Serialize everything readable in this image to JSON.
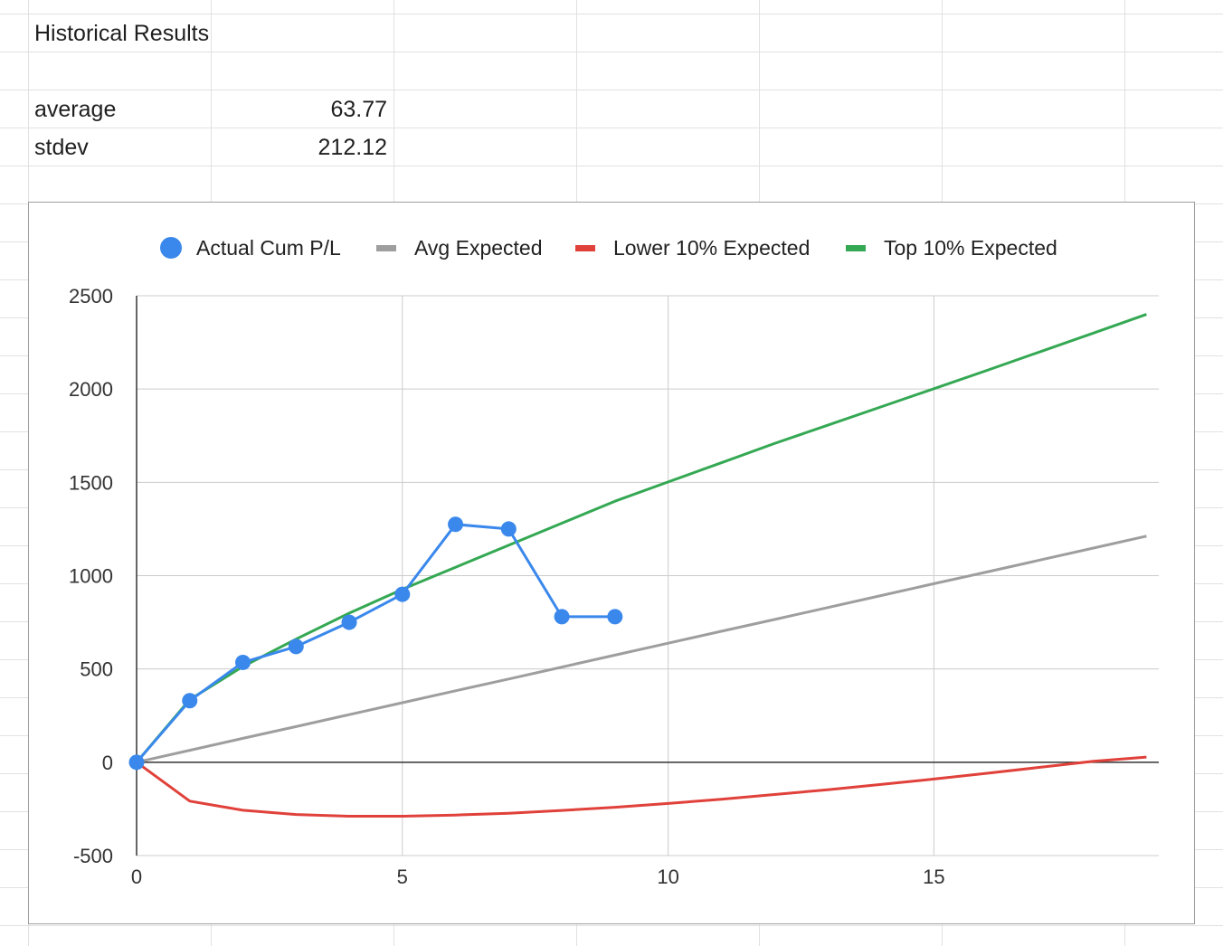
{
  "sheet": {
    "title": "Historical Results",
    "stats": [
      {
        "label": "average",
        "value": "63.77"
      },
      {
        "label": "stdev",
        "value": "212.12"
      }
    ]
  },
  "legend": [
    {
      "label": "Actual Cum P/L",
      "marker": "dot",
      "color": "#3a88ec"
    },
    {
      "label": "Avg Expected",
      "marker": "dash",
      "color": "#9e9e9e"
    },
    {
      "label": "Lower 10% Expected",
      "marker": "dash",
      "color": "#e0413a"
    },
    {
      "label": "Top 10% Expected",
      "marker": "dash",
      "color": "#34a853"
    }
  ],
  "chart_data": {
    "type": "line",
    "xlim": [
      0,
      19
    ],
    "ylim": [
      -500,
      2500
    ],
    "x_ticks": [
      0,
      5,
      10,
      15
    ],
    "y_ticks": [
      -500,
      0,
      500,
      1000,
      1500,
      2000,
      2500
    ],
    "grid": true,
    "legend_position": "top",
    "series": [
      {
        "name": "Actual Cum P/L",
        "color": "#3a88ec",
        "markers": true,
        "x": [
          0,
          1,
          2,
          3,
          4,
          5,
          6,
          7,
          8,
          9
        ],
        "y": [
          0,
          330,
          535,
          620,
          750,
          900,
          1275,
          1250,
          780,
          780
        ]
      },
      {
        "name": "Avg Expected",
        "color": "#9e9e9e",
        "markers": false,
        "x": [
          0,
          1,
          2,
          3,
          4,
          5,
          6,
          7,
          8,
          9,
          10,
          11,
          12,
          13,
          14,
          15,
          16,
          17,
          18,
          19
        ],
        "y": [
          0,
          64,
          128,
          191,
          255,
          319,
          383,
          446,
          510,
          574,
          638,
          702,
          765,
          829,
          893,
          957,
          1020,
          1084,
          1148,
          1212
        ]
      },
      {
        "name": "Lower 10% Expected",
        "color": "#e0413a",
        "markers": false,
        "x": [
          0,
          1,
          2,
          3,
          4,
          5,
          6,
          7,
          8,
          9,
          10,
          11,
          12,
          13,
          14,
          15,
          16,
          17,
          18,
          19
        ],
        "y": [
          0,
          -208,
          -257,
          -280,
          -289,
          -289,
          -283,
          -273,
          -258,
          -241,
          -221,
          -198,
          -173,
          -147,
          -119,
          -90,
          -59,
          -27,
          5,
          28
        ]
      },
      {
        "name": "Top 10% Expected",
        "color": "#34a853",
        "markers": false,
        "x": [
          0,
          1,
          2,
          3,
          4,
          5,
          6,
          7,
          8,
          9,
          10,
          11,
          12,
          13,
          14,
          15,
          16,
          17,
          18,
          19
        ],
        "y": [
          0,
          336,
          513,
          660,
          799,
          927,
          1045,
          1163,
          1281,
          1399,
          1502,
          1605,
          1708,
          1806,
          1904,
          2002,
          2100,
          2200,
          2300,
          2400
        ]
      }
    ]
  }
}
